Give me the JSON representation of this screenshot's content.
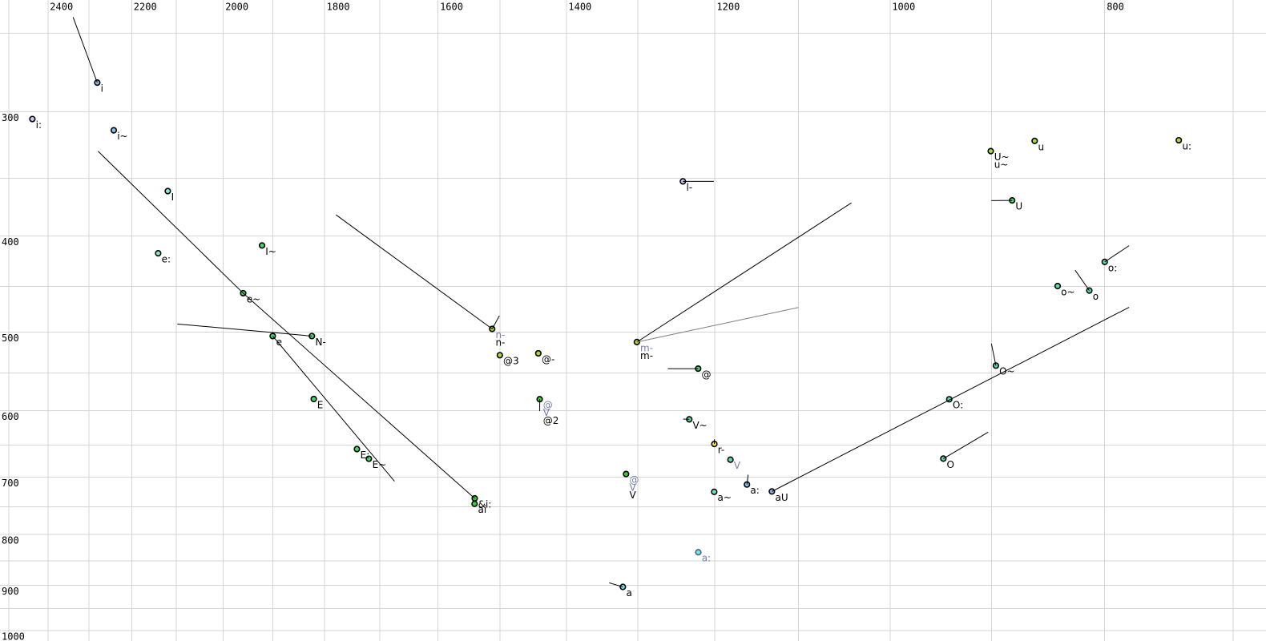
{
  "chart_data": {
    "type": "scatter",
    "title": "",
    "description": "F1/F2 vowel formant plot (Hz), log-log axes, F2 decreasing left-to-right on top axis, F1 increasing downward on left axis",
    "x_axis": {
      "unit": "Hz",
      "scale": "log",
      "reversed": true,
      "range": [
        2522.6,
        676.5
      ],
      "tick_labels": [
        2400,
        2200,
        2000,
        1800,
        1600,
        1400,
        1200,
        1000,
        800
      ],
      "gridlines": [
        2500,
        2400,
        2300,
        2200,
        2100,
        2000,
        1900,
        1800,
        1700,
        1600,
        1500,
        1400,
        1300,
        1200,
        1100,
        1000,
        900,
        800,
        700
      ]
    },
    "y_axis": {
      "unit": "Hz",
      "scale": "log",
      "range": [
        231.4,
        1024.0
      ],
      "tick_labels": [
        300,
        400,
        500,
        600,
        700,
        800,
        900,
        1000
      ],
      "gridlines": [
        250,
        300,
        350,
        400,
        450,
        500,
        550,
        600,
        650,
        700,
        750,
        800,
        850,
        900,
        950,
        1000
      ]
    },
    "legend": null,
    "grid_color": "#d4d4d4",
    "label_black": "#000000",
    "label_gray": "#7680a8",
    "points": [
      {
        "id": "i",
        "f2": 2280.0,
        "f1": 280.3,
        "fill": "#85c2f2",
        "labels": [
          {
            "text": "i",
            "gray": false
          }
        ]
      },
      {
        "id": "i:",
        "f2": 2439.1,
        "f1": 305.0,
        "fill": "#cdc6f2",
        "labels": [
          {
            "text": "i:",
            "gray": false
          }
        ]
      },
      {
        "id": "i~",
        "f2": 2241.2,
        "f1": 313.1,
        "fill": "#85c2f2",
        "labels": [
          {
            "text": "i~",
            "gray": false
          }
        ]
      },
      {
        "id": "I",
        "f2": 2118.8,
        "f1": 360.5,
        "fill": "#7df0e2",
        "labels": [
          {
            "text": "I",
            "gray": false
          }
        ]
      },
      {
        "id": "l-",
        "f2": 1240.3,
        "f1": 352.5,
        "fill": "#cdc6f2",
        "labels": [
          {
            "text": "l-",
            "gray": false
          }
        ]
      },
      {
        "id": "e:",
        "f2": 2140.1,
        "f1": 416.5,
        "fill": "#79f0d1",
        "labels": [
          {
            "text": "e:",
            "gray": false
          }
        ]
      },
      {
        "id": "I~",
        "f2": 1921.0,
        "f1": 409.0,
        "fill": "#3fd968",
        "labels": [
          {
            "text": "I~",
            "gray": false
          }
        ]
      },
      {
        "id": "e~",
        "f2": 1959.1,
        "f1": 456.9,
        "fill": "#3fd968",
        "labels": [
          {
            "text": "e~",
            "gray": false
          }
        ]
      },
      {
        "id": "e",
        "f2": 1899.8,
        "f1": 504.7,
        "fill": "#3fd968",
        "labels": [
          {
            "text": "e",
            "gray": false
          }
        ]
      },
      {
        "id": "N-",
        "f2": 1824.0,
        "f1": 504.7,
        "fill": "#3fd968",
        "labels": [
          {
            "text": "N-",
            "gray": false
          }
        ]
      },
      {
        "id": "E",
        "f2": 1820.5,
        "f1": 584.0,
        "fill": "#3fd968",
        "labels": [
          {
            "text": "E",
            "gray": false
          }
        ]
      },
      {
        "id": "E:",
        "f2": 1740.6,
        "f1": 656.0,
        "fill": "#3fd968",
        "labels": [
          {
            "text": "E:",
            "gray": false
          }
        ]
      },
      {
        "id": "E~",
        "f2": 1719.1,
        "f1": 670.9,
        "fill": "#3fd968",
        "labels": [
          {
            "text": "E~",
            "gray": false
          }
        ]
      },
      {
        "id": "&i:",
        "f2": 1540.0,
        "f1": 735.5,
        "fill": "#2ed32e",
        "labels": [
          {
            "text": "&i:",
            "gray": false
          }
        ]
      },
      {
        "id": "ai",
        "f2": 1540.2,
        "f1": 744.8,
        "fill": "#2ed32e",
        "labels": [
          {
            "text": "ai",
            "gray": false
          }
        ]
      },
      {
        "id": "n-",
        "f2": 1512.3,
        "f1": 496.4,
        "fill": "#abdc28",
        "labels": [
          {
            "text": "n-",
            "gray": true
          },
          {
            "text": "n-",
            "gray": false
          }
        ]
      },
      {
        "id": "@3",
        "f2": 1500.3,
        "f1": 527.6,
        "fill": "#abdc28",
        "labels": [
          {
            "text": "@3",
            "gray": false
          }
        ]
      },
      {
        "id": "@-",
        "f2": 1441.5,
        "f1": 525.3,
        "fill": "#abdc28",
        "labels": [
          {
            "text": "@-",
            "gray": false
          }
        ]
      },
      {
        "id": "@2",
        "f2": 1439.4,
        "f1": 584.3,
        "fill": "#2ed32e",
        "labels": [
          {
            "text": "@",
            "gray": true
          },
          {
            "text": "V",
            "gray": true
          },
          {
            "text": "@2",
            "gray": false
          }
        ]
      },
      {
        "id": "m-",
        "f2": 1301.1,
        "f1": 511.7,
        "fill": "#abdc28",
        "labels": [
          {
            "text": "m-",
            "gray": true
          },
          {
            "text": "m-",
            "gray": false
          }
        ]
      },
      {
        "id": "@",
        "f2": 1220.8,
        "f1": 544.3,
        "fill": "#3fd968",
        "labels": [
          {
            "text": "@",
            "gray": false
          }
        ]
      },
      {
        "id": "V~",
        "f2": 1232.1,
        "f1": 612.3,
        "fill": "#55e2a7",
        "labels": [
          {
            "text": "V~",
            "gray": false
          }
        ]
      },
      {
        "id": "r-",
        "f2": 1200.4,
        "f1": 648.3,
        "fill": "#ffe62e",
        "labels": [
          {
            "text": "r-",
            "gray": false
          }
        ]
      },
      {
        "id": "V-gray",
        "f2": 1180.5,
        "f1": 672.4,
        "fill": "#55e2a7",
        "labels": [
          {
            "text": "V",
            "gray": true
          }
        ]
      },
      {
        "id": "V-cluster",
        "f2": 1315.8,
        "f1": 695.1,
        "fill": "#2ed32e",
        "labels": [
          {
            "text": "@",
            "gray": true
          },
          {
            "text": "V",
            "gray": true
          },
          {
            "text": "V",
            "gray": false
          }
        ]
      },
      {
        "id": "a~",
        "f2": 1200.6,
        "f1": 724.4,
        "fill": "#63e9c5",
        "labels": [
          {
            "text": "a~",
            "gray": false
          }
        ]
      },
      {
        "id": "a:",
        "f2": 1160.4,
        "f1": 712.2,
        "fill": "#85c2f2",
        "labels": [
          {
            "text": "a:",
            "gray": false
          }
        ]
      },
      {
        "id": "aU",
        "f2": 1130.7,
        "f1": 723.8,
        "fill": "#85c2f2",
        "labels": [
          {
            "text": "aU",
            "gray": false
          }
        ]
      },
      {
        "id": "a:-gray",
        "f2": 1220.6,
        "f1": 833.5,
        "fill": "#6ceaea",
        "muted": true,
        "labels": [
          {
            "text": "a:",
            "gray": true
          }
        ]
      },
      {
        "id": "a",
        "f2": 1320.2,
        "f1": 903.2,
        "fill": "#6ceaea",
        "labels": [
          {
            "text": "a",
            "gray": false
          }
        ]
      },
      {
        "id": "U~u~",
        "f2": 900.6,
        "f1": 328.6,
        "fill": "#abdc28",
        "labels": [
          {
            "text": "U~",
            "gray": false
          },
          {
            "text": "u~",
            "gray": false
          }
        ]
      },
      {
        "id": "u",
        "f2": 860.4,
        "f1": 320.9,
        "fill": "#abdc28",
        "labels": [
          {
            "text": "u",
            "gray": false
          }
        ]
      },
      {
        "id": "u:",
        "f2": 740.7,
        "f1": 320.4,
        "fill": "#abdc28",
        "labels": [
          {
            "text": "u:",
            "gray": false
          }
        ]
      },
      {
        "id": "U",
        "f2": 880.8,
        "f1": 368.4,
        "fill": "#3fd968",
        "labels": [
          {
            "text": "U",
            "gray": false
          }
        ]
      },
      {
        "id": "o:",
        "f2": 800.0,
        "f1": 424.9,
        "fill": "#55e2a7",
        "labels": [
          {
            "text": "o:",
            "gray": false
          }
        ]
      },
      {
        "id": "o~",
        "f2": 840.1,
        "f1": 449.4,
        "fill": "#55e2a7",
        "labels": [
          {
            "text": "o~",
            "gray": false
          }
        ]
      },
      {
        "id": "o",
        "f2": 812.9,
        "f1": 454.1,
        "fill": "#55e2a7",
        "labels": [
          {
            "text": "o",
            "gray": false
          }
        ]
      },
      {
        "id": "O~",
        "f2": 895.8,
        "f1": 540.5,
        "fill": "#55e2a7",
        "labels": [
          {
            "text": "O~",
            "gray": false
          }
        ]
      },
      {
        "id": "O:",
        "f2": 940.3,
        "f1": 584.4,
        "fill": "#55e2a7",
        "labels": [
          {
            "text": "O:",
            "gray": false
          }
        ]
      },
      {
        "id": "O",
        "f2": 946.1,
        "f1": 670.7,
        "fill": "#55e2a7",
        "labels": [
          {
            "text": "O",
            "gray": false
          }
        ]
      }
    ],
    "segments": [
      {
        "id": "i-tail",
        "gray": false,
        "pts": [
          [
            2338,
            240.8
          ],
          [
            2280,
            280.3
          ]
        ]
      },
      {
        "id": "i~-e~-ai",
        "gray": false,
        "pts": [
          [
            2278,
            328.7
          ],
          [
            1959.1,
            456.9
          ],
          [
            1540,
            735.5
          ]
        ]
      },
      {
        "id": "to-N-",
        "gray": false,
        "pts": [
          [
            2098,
            490.7
          ],
          [
            1824,
            504.7
          ]
        ]
      },
      {
        "id": "e-E-trajectory",
        "gray": false,
        "pts": [
          [
            1899.8,
            504.7
          ],
          [
            1674,
            706.7
          ]
        ]
      },
      {
        "id": "to-n-",
        "gray": false,
        "pts": [
          [
            1779,
            380.9
          ],
          [
            1512.3,
            496.4
          ]
        ]
      },
      {
        "id": "n--tick",
        "gray": false,
        "pts": [
          [
            1512.3,
            496.4
          ],
          [
            1501,
            481.5
          ]
        ]
      },
      {
        "id": "m--upper",
        "gray": false,
        "pts": [
          [
            1301.1,
            511.7
          ],
          [
            1041,
            370.5
          ]
        ]
      },
      {
        "id": "m--lower",
        "gray": true,
        "pts": [
          [
            1301.1,
            511.7
          ],
          [
            1100,
            472.3
          ]
        ]
      },
      {
        "id": "l--line",
        "gray": false,
        "pts": [
          [
            1240.3,
            352.5
          ],
          [
            1201,
            352.5
          ]
        ]
      },
      {
        "id": "@-line",
        "gray": false,
        "pts": [
          [
            1260,
            544.3
          ],
          [
            1220.8,
            544.3
          ]
        ]
      },
      {
        "id": "@2-tick",
        "gray": false,
        "pts": [
          [
            1439.4,
            584.3
          ],
          [
            1439.4,
            600.6
          ]
        ]
      },
      {
        "id": "V~-tick",
        "gray": false,
        "pts": [
          [
            1240,
            611.9
          ],
          [
            1232.1,
            612.3
          ]
        ]
      },
      {
        "id": "r--tick",
        "gray": false,
        "pts": [
          [
            1200.4,
            641.3
          ],
          [
            1200.4,
            648.3
          ]
        ]
      },
      {
        "id": "a:-tick",
        "gray": false,
        "pts": [
          [
            1159,
            696.1
          ],
          [
            1160.4,
            712.2
          ]
        ]
      },
      {
        "id": "aU-O:-line",
        "gray": false,
        "pts": [
          [
            1130.7,
            723.8
          ],
          [
            780,
            472.1
          ]
        ]
      },
      {
        "id": "a-tick",
        "gray": false,
        "pts": [
          [
            1339,
            894.7
          ],
          [
            1320.2,
            903.2
          ]
        ]
      },
      {
        "id": "U-line",
        "gray": false,
        "pts": [
          [
            900,
            368.6
          ],
          [
            880.8,
            368.4
          ]
        ]
      },
      {
        "id": "o:-line",
        "gray": false,
        "pts": [
          [
            800,
            424.9
          ],
          [
            780,
            409.2
          ]
        ]
      },
      {
        "id": "o-line",
        "gray": false,
        "pts": [
          [
            825,
            433.0
          ],
          [
            812.9,
            454.1
          ]
        ]
      },
      {
        "id": "O~-line",
        "gray": false,
        "pts": [
          [
            900,
            513.7
          ],
          [
            895.8,
            540.5
          ]
        ]
      },
      {
        "id": "O-line",
        "gray": false,
        "pts": [
          [
            946.1,
            670.7
          ],
          [
            903,
            630.7
          ]
        ]
      }
    ]
  }
}
